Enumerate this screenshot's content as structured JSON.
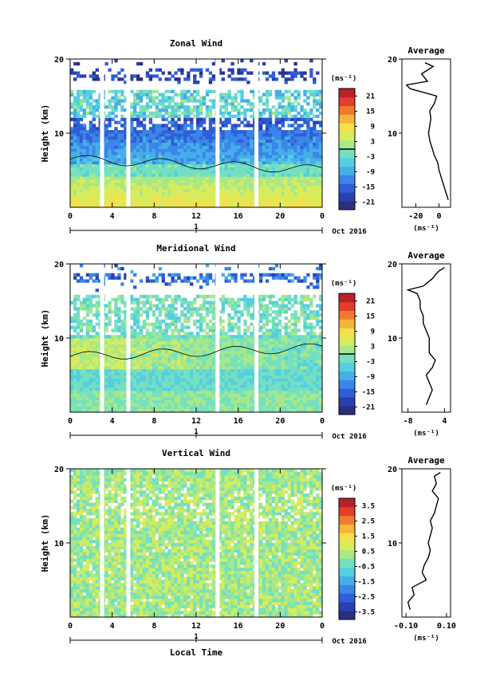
{
  "page": {
    "x_axis_label": "Local Time",
    "day_marker": "1",
    "date_label": "Oct 2016"
  },
  "chart_data": [
    {
      "type": "heatmap",
      "title": "Zonal Wind",
      "ylabel": "Height (km)",
      "xlim": [
        0,
        24
      ],
      "ylim": [
        0,
        20
      ],
      "x_ticks": [
        "0",
        "4",
        "8",
        "12",
        "16",
        "20",
        "0"
      ],
      "y_ticks": [
        "20",
        "10"
      ],
      "colorbar": {
        "unit": "(ms⁻¹)",
        "ticks": [
          "21",
          "15",
          "9",
          "3",
          "-3",
          "-9",
          "-15",
          "-21"
        ],
        "range": [
          -24,
          24
        ]
      },
      "gaps_hours": [
        3.0,
        5.5,
        14.0,
        17.7
      ],
      "profile": {
        "title": "Average",
        "xlabel": "(ms⁻¹)",
        "x_ticks": [
          "-20",
          "0"
        ],
        "y_ticks": [
          "20",
          "10"
        ],
        "xlim": [
          -32,
          10
        ],
        "heights": [
          1,
          2,
          3,
          4,
          5,
          6,
          7,
          8,
          9,
          10,
          11,
          12,
          13,
          14,
          15,
          16,
          16.5,
          17,
          18,
          19,
          19.5
        ],
        "values": [
          8,
          6,
          4,
          2,
          0,
          -1,
          -4,
          -6,
          -8,
          -9,
          -8,
          -7,
          -8,
          -4,
          -2,
          -25,
          -28,
          -10,
          -15,
          -5,
          -12
        ]
      }
    },
    {
      "type": "heatmap",
      "title": "Meridional Wind",
      "ylabel": "Height (km)",
      "xlim": [
        0,
        24
      ],
      "ylim": [
        0,
        20
      ],
      "x_ticks": [
        "0",
        "4",
        "8",
        "12",
        "16",
        "20",
        "0"
      ],
      "y_ticks": [
        "20",
        "10"
      ],
      "colorbar": {
        "unit": "(ms⁻¹)",
        "ticks": [
          "21",
          "15",
          "9",
          "3",
          "-3",
          "-9",
          "-15",
          "-21"
        ],
        "range": [
          -24,
          24
        ]
      },
      "gaps_hours": [
        3.0,
        5.5,
        14.0,
        17.7
      ],
      "profile": {
        "title": "Average",
        "xlabel": "(ms⁻¹)",
        "x_ticks": [
          "-8",
          "4"
        ],
        "y_ticks": [
          "20",
          "10"
        ],
        "xlim": [
          -10,
          6
        ],
        "heights": [
          1,
          2,
          3,
          4,
          5,
          6,
          7,
          8,
          9,
          10,
          11,
          12,
          13,
          14,
          15,
          16,
          16.5,
          17,
          18,
          19,
          19.5
        ],
        "values": [
          -2,
          -1,
          0,
          -1,
          -2,
          0,
          1,
          -1,
          -1,
          -1,
          -2,
          -3,
          -3,
          -4,
          -4,
          -5,
          -8,
          -3,
          0,
          2,
          4
        ]
      }
    },
    {
      "type": "heatmap",
      "title": "Vertical Wind",
      "ylabel": "Height (km)",
      "xlim": [
        0,
        24
      ],
      "ylim": [
        0,
        20
      ],
      "x_ticks": [
        "0",
        "4",
        "8",
        "12",
        "16",
        "20",
        "0"
      ],
      "y_ticks": [
        "20",
        "10"
      ],
      "colorbar": {
        "unit": "(ms⁻¹)",
        "ticks": [
          "3.5",
          "2.5",
          "1.5",
          "0.5",
          "-0.5",
          "-1.5",
          "-2.5",
          "-3.5"
        ],
        "range": [
          -4,
          4
        ]
      },
      "gaps_hours": [
        3.0,
        5.5,
        14.0,
        17.7
      ],
      "profile": {
        "title": "Average",
        "xlabel": "(ms⁻¹)",
        "x_ticks": [
          "-0.10",
          "0.10"
        ],
        "y_ticks": [
          "20",
          "10"
        ],
        "xlim": [
          -0.12,
          0.12
        ],
        "heights": [
          1,
          2,
          3,
          4,
          5,
          6,
          7,
          8,
          9,
          10,
          11,
          12,
          13,
          14,
          15,
          16,
          17,
          18,
          19,
          19.5
        ],
        "values": [
          -0.08,
          -0.09,
          -0.06,
          -0.07,
          0.0,
          -0.02,
          -0.01,
          0.01,
          0.02,
          0.01,
          0.02,
          0.03,
          0.02,
          0.04,
          0.05,
          0.06,
          0.03,
          0.05,
          0.04,
          0.07
        ]
      }
    }
  ]
}
